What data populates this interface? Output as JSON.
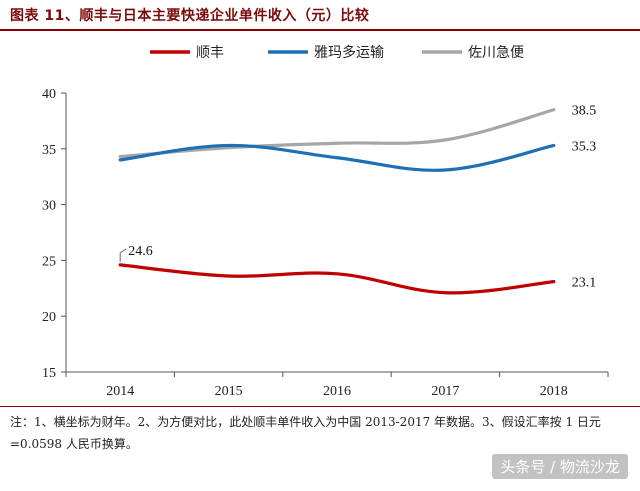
{
  "title": "图表 11、顺丰与日本主要快递企业单件收入（元）比较",
  "note": "注：1、横坐标为财年。2、为方便对比，此处顺丰单件收入为中国 2013-2017 年数据。3、假设汇率按 1 日元=0.0598 人民币换算。",
  "watermark": "头条号 / 物流沙龙",
  "chart_data": {
    "type": "line",
    "title": "图表 11、顺丰与日本主要快递企业单件收入（元）比较",
    "xlabel": "",
    "ylabel": "",
    "categories": [
      "2014",
      "2015",
      "2016",
      "2017",
      "2018"
    ],
    "ylim": [
      15,
      40
    ],
    "yticks": [
      15,
      20,
      25,
      30,
      35,
      40
    ],
    "grid": false,
    "legend_position": "top",
    "series": [
      {
        "name": "顺丰",
        "color": "#c00000",
        "values": [
          24.6,
          23.6,
          23.8,
          22.1,
          23.1
        ],
        "labels": [
          "24.6",
          "",
          "",
          "",
          "23.1"
        ]
      },
      {
        "name": "雅玛多运输",
        "color": "#1f6fb5",
        "values": [
          34.0,
          35.3,
          34.2,
          33.1,
          35.3
        ],
        "labels": [
          "",
          "",
          "",
          "",
          "35.3"
        ]
      },
      {
        "name": "佐川急便",
        "color": "#a6a6a6",
        "values": [
          34.3,
          35.1,
          35.5,
          35.8,
          38.5
        ],
        "labels": [
          "",
          "",
          "",
          "",
          "38.5"
        ]
      }
    ]
  }
}
